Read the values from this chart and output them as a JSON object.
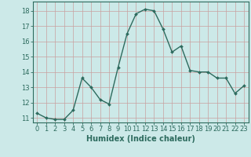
{
  "x": [
    0,
    1,
    2,
    3,
    4,
    5,
    6,
    7,
    8,
    9,
    10,
    11,
    12,
    13,
    14,
    15,
    16,
    17,
    18,
    19,
    20,
    21,
    22,
    23
  ],
  "y": [
    11.3,
    11.0,
    10.9,
    10.9,
    11.5,
    13.6,
    13.0,
    12.2,
    11.9,
    14.3,
    16.5,
    17.8,
    18.1,
    18.0,
    16.8,
    15.3,
    15.7,
    14.1,
    14.0,
    14.0,
    13.6,
    13.6,
    12.6,
    13.1
  ],
  "xlabel": "Humidex (Indice chaleur)",
  "bg_color": "#cce9e8",
  "line_color": "#2d6b5e",
  "grid_color": "#c8a0a0",
  "xlim": [
    -0.5,
    23.5
  ],
  "ylim": [
    10.7,
    18.6
  ],
  "yticks": [
    11,
    12,
    13,
    14,
    15,
    16,
    17,
    18
  ],
  "xticks": [
    0,
    1,
    2,
    3,
    4,
    5,
    6,
    7,
    8,
    9,
    10,
    11,
    12,
    13,
    14,
    15,
    16,
    17,
    18,
    19,
    20,
    21,
    22,
    23
  ],
  "markersize": 2.0,
  "linewidth": 1.0,
  "xlabel_fontsize": 7,
  "tick_fontsize": 6
}
